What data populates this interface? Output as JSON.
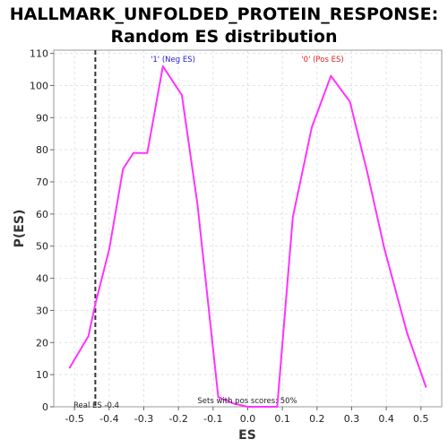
{
  "title_line1": "HALLMARK_UNFOLDED_PROTEIN_RESPONSE:",
  "title_line2": "Random ES distribution",
  "colors": {
    "series": "#ff33ff",
    "neg_label": "#2222cc",
    "pos_label": "#dd2222",
    "real_es_line": "#333333",
    "grid": "#e3e3e3"
  },
  "chart_data": {
    "type": "line",
    "title": "HALLMARK_UNFOLDED_PROTEIN_RESPONSE: Random ES distribution",
    "xlabel": "ES",
    "ylabel": "P(ES)",
    "xlim": [
      -0.56,
      0.56
    ],
    "ylim": [
      0,
      111
    ],
    "xticks": [
      -0.5,
      -0.4,
      -0.3,
      -0.2,
      -0.1,
      0.0,
      0.1,
      0.2,
      0.3,
      0.4,
      0.5
    ],
    "xtick_labels": [
      "-0.5",
      "-0.4",
      "-0.3",
      "-0.2",
      "-0.1",
      "0.0",
      "0.1",
      "0.2",
      "0.3",
      "0.4",
      "0.5"
    ],
    "yticks": [
      0,
      10,
      20,
      30,
      40,
      50,
      60,
      70,
      80,
      90,
      100,
      110
    ],
    "grid": true,
    "series": [
      {
        "x": [
          -0.515,
          -0.46,
          -0.44,
          -0.4,
          -0.36,
          -0.33,
          -0.29,
          -0.245,
          -0.19,
          -0.145,
          -0.085,
          -0.04,
          0.0,
          0.04,
          0.085,
          0.13,
          0.185,
          0.24,
          0.295,
          0.345,
          0.395,
          0.46,
          0.515
        ],
        "y": [
          12,
          22,
          32,
          49,
          74,
          79,
          79,
          106,
          97,
          63,
          3,
          1,
          0,
          0,
          0,
          59,
          87,
          103,
          95,
          73,
          49,
          23,
          6
        ]
      }
    ],
    "real_es": -0.44,
    "annotations": {
      "neg_label": "'1' (Neg ES)",
      "pos_label": "'0' (Pos ES)",
      "real_es_label": "Real ES -0.4",
      "pos_scores_label": "Sets with pos scores: 50%"
    }
  }
}
